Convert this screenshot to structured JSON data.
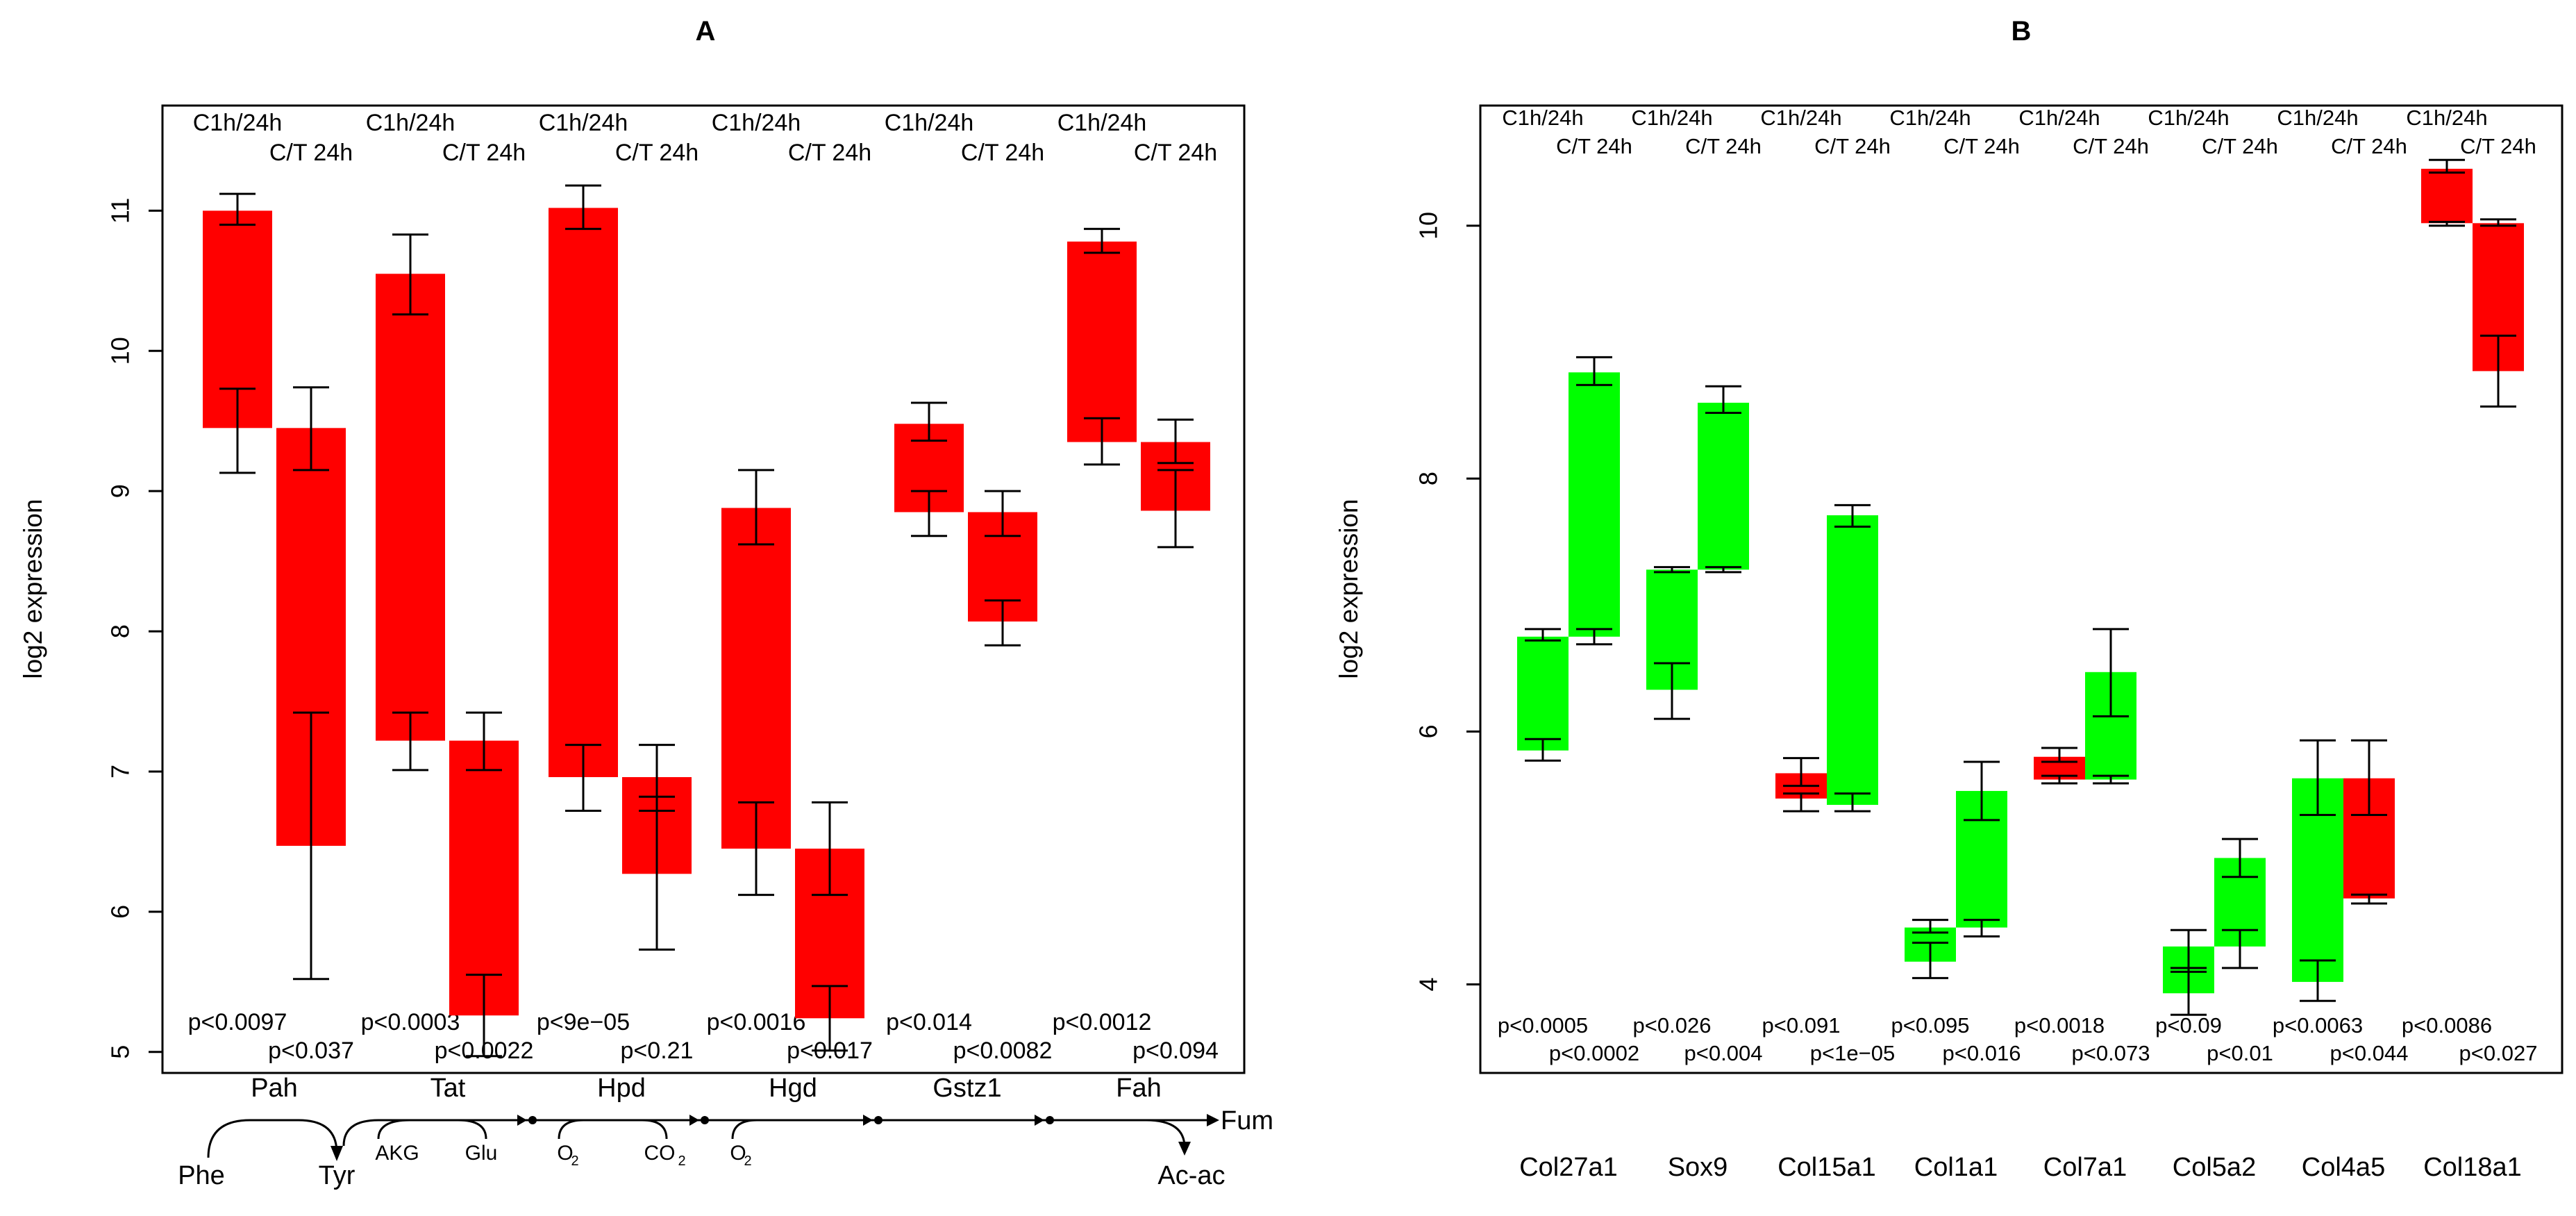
{
  "colors": {
    "up": "#ff0000",
    "down": "#00ff00",
    "axis": "#000000"
  },
  "chart_data": [
    {
      "panel": "A",
      "type": "floating-bar",
      "title": "A",
      "ylabel": "log2 expression",
      "ylim": [
        4.85,
        11.75
      ],
      "yticks": [
        5,
        6,
        7,
        8,
        9,
        10,
        11
      ],
      "header_top": "C1h/24h",
      "header_bottom": "C/T 24h",
      "genes": [
        {
          "name": "Pah",
          "bars": [
            {
              "label": "C1h/24h",
              "from": 9.45,
              "to": 11.0,
              "color": "up",
              "err_top": [
                10.9,
                11.12
              ],
              "err_bottom": [
                9.13,
                9.73
              ],
              "p": "p<0.0097"
            },
            {
              "label": "C/T 24h",
              "from": 6.47,
              "to": 9.45,
              "color": "up",
              "err_top": [
                9.15,
                9.74
              ],
              "err_bottom": [
                5.52,
                7.42
              ],
              "p": "p<0.037"
            }
          ]
        },
        {
          "name": "Tat",
          "bars": [
            {
              "label": "C1h/24h",
              "from": 7.22,
              "to": 10.55,
              "color": "up",
              "err_top": [
                10.26,
                10.83
              ],
              "err_bottom": [
                7.01,
                7.42
              ],
              "p": "p<0.0003"
            },
            {
              "label": "C/T 24h",
              "from": 5.26,
              "to": 7.22,
              "color": "up",
              "err_top": [
                7.01,
                7.42
              ],
              "err_bottom": [
                4.97,
                5.55
              ],
              "p": "p<0.0022"
            }
          ]
        },
        {
          "name": "Hpd",
          "bars": [
            {
              "label": "C1h/24h",
              "from": 6.96,
              "to": 11.02,
              "color": "up",
              "err_top": [
                10.87,
                11.18
              ],
              "err_bottom": [
                6.72,
                7.19
              ],
              "p": "p<9e−05"
            },
            {
              "label": "C/T 24h",
              "from": 6.27,
              "to": 6.96,
              "color": "up",
              "err_top": [
                6.72,
                7.19
              ],
              "err_bottom": [
                5.73,
                6.82
              ],
              "p": "p<0.21"
            }
          ]
        },
        {
          "name": "Hgd",
          "bars": [
            {
              "label": "C1h/24h",
              "from": 6.45,
              "to": 8.88,
              "color": "up",
              "err_top": [
                8.62,
                9.15
              ],
              "err_bottom": [
                6.12,
                6.78
              ],
              "p": "p<0.0016"
            },
            {
              "label": "C/T 24h",
              "from": 5.24,
              "to": 6.45,
              "color": "up",
              "err_top": [
                6.12,
                6.78
              ],
              "err_bottom": [
                5.01,
                5.47
              ],
              "p": "p<0.017"
            }
          ]
        },
        {
          "name": "Gstz1",
          "bars": [
            {
              "label": "C1h/24h",
              "from": 8.85,
              "to": 9.48,
              "color": "up",
              "err_top": [
                9.36,
                9.63
              ],
              "err_bottom": [
                8.68,
                9.0
              ],
              "p": "p<0.014"
            },
            {
              "label": "C/T 24h",
              "from": 8.07,
              "to": 8.85,
              "color": "up",
              "err_top": [
                8.68,
                9.0
              ],
              "err_bottom": [
                7.9,
                8.22
              ],
              "p": "p<0.0082"
            }
          ]
        },
        {
          "name": "Fah",
          "bars": [
            {
              "label": "C1h/24h",
              "from": 9.35,
              "to": 10.78,
              "color": "up",
              "err_top": [
                10.7,
                10.87
              ],
              "err_bottom": [
                9.19,
                9.52
              ],
              "p": "p<0.0012"
            },
            {
              "label": "C/T 24h",
              "from": 8.86,
              "to": 9.35,
              "color": "up",
              "err_top": [
                9.2,
                9.51
              ],
              "err_bottom": [
                8.6,
                9.15
              ],
              "p": "p<0.094"
            }
          ]
        }
      ],
      "pathway": {
        "metabolites": [
          "Phe",
          "Tyr",
          "Fum",
          "Ac-ac"
        ],
        "cofactors": [
          {
            "gene": "Tat",
            "left": "AKG",
            "right": "Glu"
          },
          {
            "gene": "Hpd",
            "left": "O",
            "left_sub": "2",
            "right": "CO",
            "right_sub": "2"
          },
          {
            "gene": "Hgd",
            "left": "O",
            "left_sub": "2"
          }
        ]
      }
    },
    {
      "panel": "B",
      "type": "floating-bar",
      "title": "B",
      "ylabel": "log2 expression",
      "ylim": [
        3.3,
        10.95
      ],
      "yticks": [
        4,
        6,
        8,
        10
      ],
      "header_top": "C1h/24h",
      "header_bottom": "C/T 24h",
      "genes": [
        {
          "name": "Col27a1",
          "bars": [
            {
              "label": "C1h/24h",
              "from": 5.85,
              "to": 6.75,
              "color": "down",
              "err_top": [
                6.72,
                6.81
              ],
              "err_bottom": [
                5.77,
                5.94
              ],
              "p": "p<0.0005"
            },
            {
              "label": "C/T 24h",
              "from": 6.75,
              "to": 8.84,
              "color": "down",
              "err_top": [
                8.74,
                8.96
              ],
              "err_bottom": [
                6.69,
                6.81
              ],
              "p": "p<0.0002"
            }
          ]
        },
        {
          "name": "Sox9",
          "bars": [
            {
              "label": "C1h/24h",
              "from": 6.33,
              "to": 7.28,
              "color": "down",
              "err_top": [
                7.26,
                7.3
              ],
              "err_bottom": [
                6.1,
                6.54
              ],
              "p": "p<0.026"
            },
            {
              "label": "C/T 24h",
              "from": 7.28,
              "to": 8.6,
              "color": "down",
              "err_top": [
                8.52,
                8.73
              ],
              "err_bottom": [
                7.26,
                7.3
              ],
              "p": "p<0.004"
            }
          ]
        },
        {
          "name": "Col15a1",
          "bars": [
            {
              "label": "C1h/24h",
              "from": 5.47,
              "to": 5.67,
              "color": "up",
              "err_top": [
                5.57,
                5.79
              ],
              "err_bottom": [
                5.37,
                5.51
              ],
              "p": "p<0.091"
            },
            {
              "label": "C/T 24h",
              "from": 5.42,
              "to": 7.71,
              "color": "down",
              "err_top": [
                7.62,
                7.79
              ],
              "err_bottom": [
                5.37,
                5.51
              ],
              "p": "p<1e−05"
            }
          ]
        },
        {
          "name": "Col1a1",
          "bars": [
            {
              "label": "C1h/24h",
              "from": 4.18,
              "to": 4.45,
              "color": "down",
              "err_top": [
                4.41,
                4.51
              ],
              "err_bottom": [
                4.05,
                4.33
              ],
              "p": "p<0.095"
            },
            {
              "label": "C/T 24h",
              "from": 4.45,
              "to": 5.53,
              "color": "down",
              "err_top": [
                5.3,
                5.76
              ],
              "err_bottom": [
                4.38,
                4.51
              ],
              "p": "p<0.016"
            }
          ]
        },
        {
          "name": "Col7a1",
          "bars": [
            {
              "label": "C1h/24h",
              "from": 5.62,
              "to": 5.8,
              "color": "up",
              "err_top": [
                5.76,
                5.87
              ],
              "err_bottom": [
                5.59,
                5.65
              ],
              "p": "p<0.0018"
            },
            {
              "label": "C/T 24h",
              "from": 5.62,
              "to": 6.47,
              "color": "down",
              "err_top": [
                6.12,
                6.81
              ],
              "err_bottom": [
                5.59,
                5.65
              ],
              "p": "p<0.073"
            }
          ]
        },
        {
          "name": "Col5a2",
          "bars": [
            {
              "label": "C1h/24h",
              "from": 3.93,
              "to": 4.3,
              "color": "down",
              "err_top": [
                4.1,
                4.43
              ],
              "err_bottom": [
                3.76,
                4.13
              ],
              "p": "p<0.09"
            },
            {
              "label": "C/T 24h",
              "from": 4.3,
              "to": 5.0,
              "color": "down",
              "err_top": [
                4.85,
                5.15
              ],
              "err_bottom": [
                4.13,
                4.43
              ],
              "p": "p<0.01"
            }
          ]
        },
        {
          "name": "Col4a5",
          "bars": [
            {
              "label": "C1h/24h",
              "from": 4.02,
              "to": 5.63,
              "color": "down",
              "err_top": [
                5.34,
                5.93
              ],
              "err_bottom": [
                3.87,
                4.19
              ],
              "p": "p<0.0063"
            },
            {
              "label": "C/T 24h",
              "from": 4.68,
              "to": 5.63,
              "color": "up",
              "err_top": [
                5.34,
                5.93
              ],
              "err_bottom": [
                4.64,
                4.71
              ],
              "p": "p<0.044"
            }
          ]
        },
        {
          "name": "Col18a1",
          "bars": [
            {
              "label": "C1h/24h",
              "from": 10.02,
              "to": 10.45,
              "color": "up",
              "err_top": [
                10.42,
                10.52
              ],
              "err_bottom": [
                10.0,
                10.03
              ],
              "p": "p<0.0086"
            },
            {
              "label": "C/T 24h",
              "from": 8.85,
              "to": 10.02,
              "color": "up",
              "err_top": [
                10.0,
                10.05
              ],
              "err_bottom": [
                8.57,
                9.13
              ],
              "p": "p<0.027"
            }
          ]
        }
      ]
    }
  ]
}
